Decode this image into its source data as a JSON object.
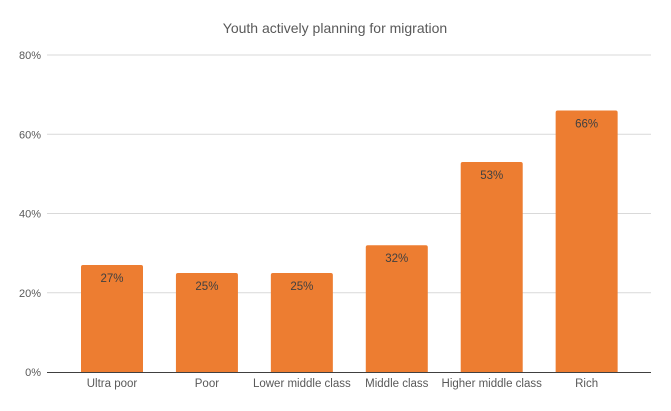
{
  "chart_data": {
    "type": "bar",
    "title": "Youth actively planning for migration",
    "xlabel": "",
    "ylabel": "",
    "categories": [
      "Ultra poor",
      "Poor",
      "Lower middle class",
      "Middle class",
      "Higher middle class",
      "Rich"
    ],
    "values": [
      27,
      25,
      25,
      32,
      53,
      66
    ],
    "data_labels": [
      "27%",
      "25%",
      "25%",
      "32%",
      "53%",
      "66%"
    ],
    "ylim": [
      0,
      80
    ],
    "yticks": [
      0,
      20,
      40,
      60,
      80
    ],
    "ytick_labels": [
      "0%",
      "20%",
      "40%",
      "60%",
      "80%"
    ],
    "grid": true,
    "legend": "none",
    "bar_color": "#ED7D31",
    "grid_color": "#D9D9D9",
    "axis_color": "#404040"
  }
}
